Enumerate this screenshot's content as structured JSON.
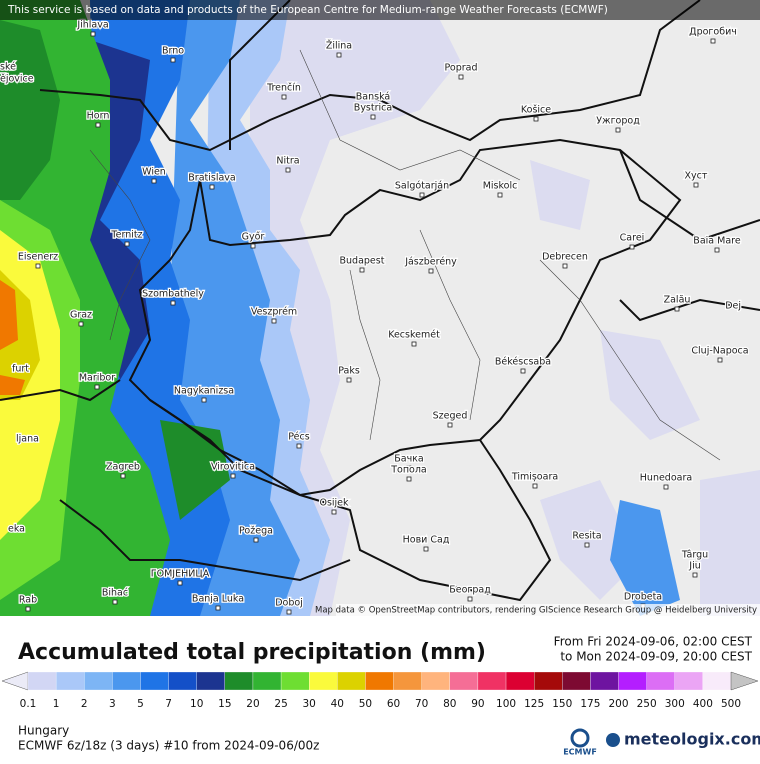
{
  "header": {
    "attribution": "This service is based on data and products of the European Centre for Medium-range Weather Forecasts (ECMWF)"
  },
  "map": {
    "credit": "Map data © OpenStreetMap contributors, rendering GIScience Research Group @ Heidelberg University",
    "places": [
      "Jihlava",
      "Brno",
      "ské",
      "ějovice",
      "Horn",
      "Wien",
      "Bratislava",
      "Ternitz",
      "Eisenerz",
      "Győr",
      "Szombathely",
      "Graz",
      "furt",
      "Maribor",
      "Nagykanizsa",
      "ljana",
      "Zagreb",
      "Virovitica",
      "Pécs",
      "Osijek",
      "eka",
      "Požega",
      "ГОМЈЕНИЦА",
      "Bihać",
      "Rab",
      "Banja Luka",
      "Doboj",
      "Žilina",
      "Poprad",
      "Trenčín",
      "Banská",
      "Bystrica",
      "Košice",
      "Ужгород",
      "Nitra",
      "Salgótarján",
      "Miskolc",
      "Хуст",
      "Дрогобич",
      "Budapest",
      "Jászberény",
      "Debrecen",
      "Carei",
      "Baia Mare",
      "Veszprém",
      "Kecskemét",
      "Zalău",
      "Dej",
      "Cluj-Napoca",
      "Paks",
      "Békéscsaba",
      "Szeged",
      "Бачка",
      "Топола",
      "Timișoara",
      "Hunedoara",
      "Нови Сад",
      "Resita",
      "Târgu",
      "Jiu",
      "Београд",
      "Drobeta"
    ]
  },
  "footer": {
    "title": "Accumulated total precipitation (mm)",
    "from": "From Fri 2024-09-06, 02:00 CEST",
    "to": "to Mon 2024-09-09, 20:00 CEST",
    "region": "Hungary",
    "model": "ECMWF 6z/18z (3 days) #10 from  2024-09-06/00z",
    "logo_left": "ECMWF",
    "logo_right": "meteologix.com"
  },
  "legend": {
    "labels": [
      "0.1",
      "1",
      "2",
      "3",
      "5",
      "7",
      "10",
      "15",
      "20",
      "25",
      "30",
      "40",
      "50",
      "60",
      "70",
      "80",
      "90",
      "100",
      "125",
      "150",
      "175",
      "200",
      "250",
      "300",
      "400",
      "500"
    ],
    "colors": [
      "#ebebf7",
      "#d2d6f4",
      "#aac8f8",
      "#7db5f5",
      "#4b97ee",
      "#1f74e6",
      "#1450c8",
      "#1c3490",
      "#1e8c2a",
      "#32b432",
      "#6ede32",
      "#fafa3c",
      "#dcd200",
      "#f07800",
      "#f5963c",
      "#ffb47d",
      "#f56e96",
      "#f03264",
      "#dc0032",
      "#a50a0a",
      "#7d0a32",
      "#6e14a0",
      "#b41eff",
      "#dc6ef5",
      "#eba5f5",
      "#f8ebfa",
      "#c4c4c4"
    ]
  }
}
